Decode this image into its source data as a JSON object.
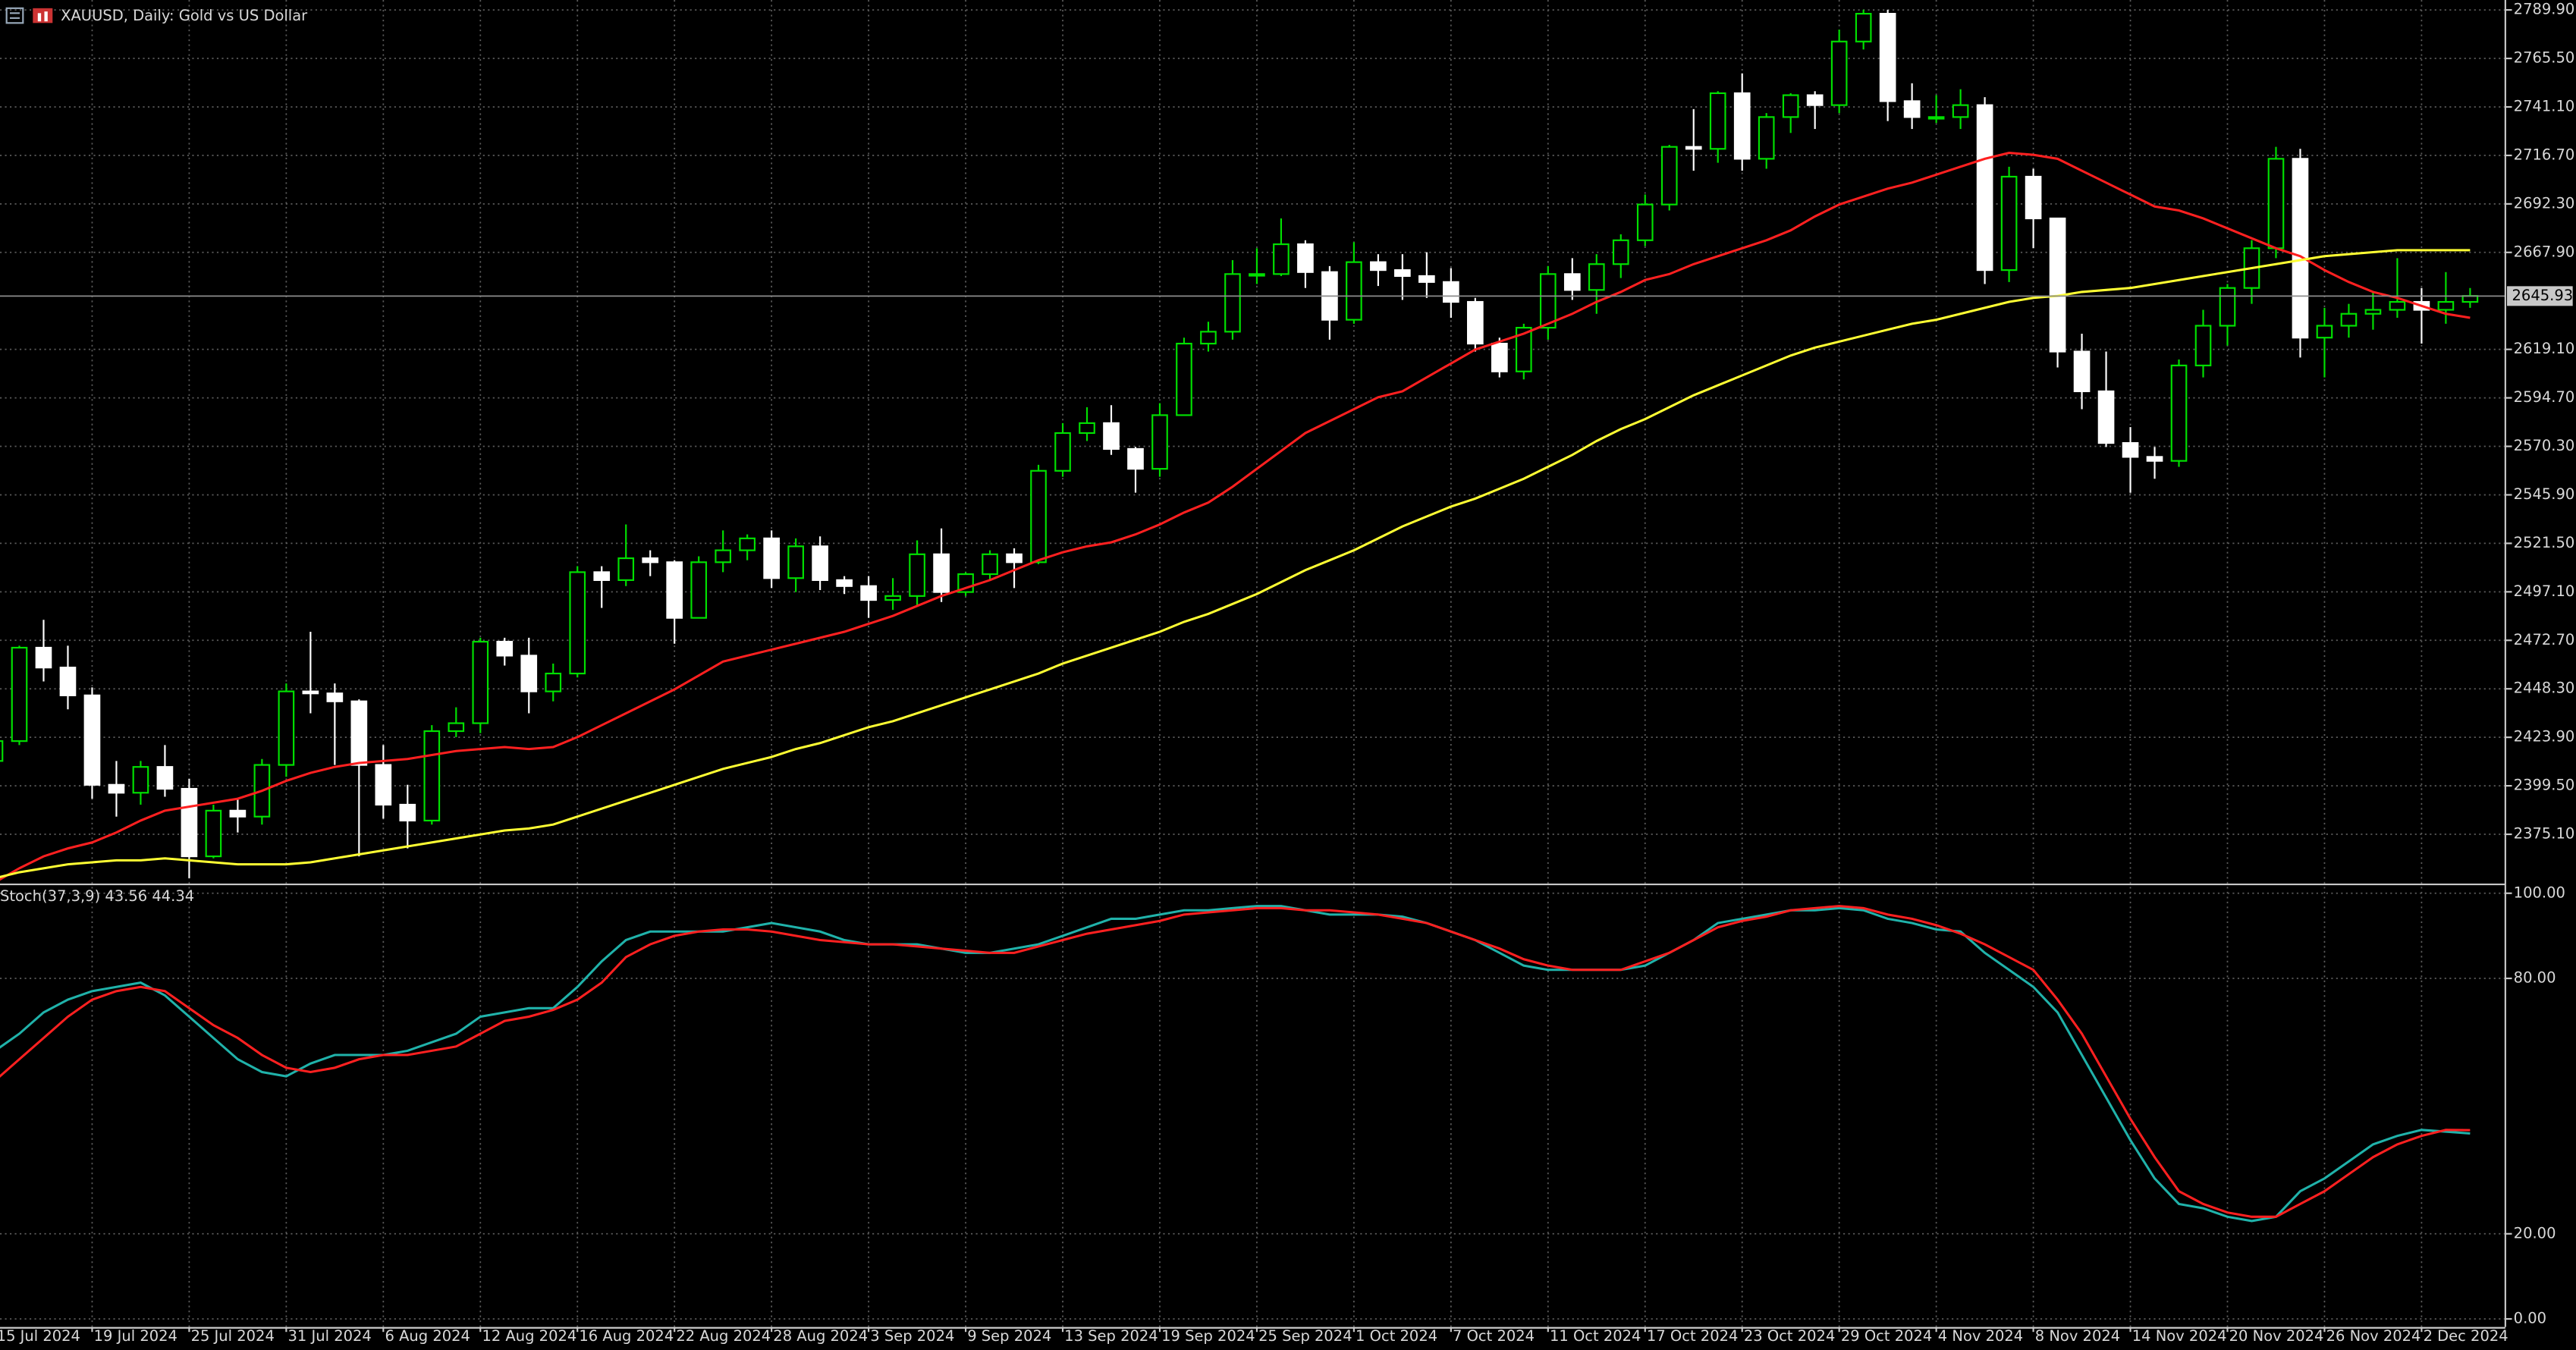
{
  "chart_data": [
    {
      "type": "candlestick",
      "title": "XAUUSD, Daily:  Gold vs US Dollar",
      "categories": [
        "15 Jul 2024",
        null,
        null,
        null,
        "19 Jul 2024",
        null,
        null,
        null,
        "25 Jul 2024",
        null,
        null,
        null,
        "31 Jul 2024",
        null,
        null,
        null,
        "6 Aug 2024",
        null,
        null,
        null,
        "12 Aug 2024",
        null,
        null,
        null,
        "16 Aug 2024",
        null,
        null,
        null,
        "22 Aug 2024",
        null,
        null,
        null,
        "28 Aug 2024",
        null,
        null,
        null,
        "3 Sep 2024",
        null,
        null,
        null,
        "9 Sep 2024",
        null,
        null,
        null,
        "13 Sep 2024",
        null,
        null,
        null,
        "19 Sep 2024",
        null,
        null,
        null,
        "25 Sep 2024",
        null,
        null,
        null,
        "1 Oct 2024",
        null,
        null,
        null,
        "7 Oct 2024",
        null,
        null,
        null,
        "11 Oct 2024",
        null,
        null,
        null,
        "17 Oct 2024",
        null,
        null,
        null,
        "23 Oct 2024",
        null,
        null,
        null,
        "29 Oct 2024",
        null,
        null,
        null,
        "4 Nov 2024",
        null,
        null,
        null,
        "8 Nov 2024",
        null,
        null,
        null,
        "14 Nov 2024",
        null,
        null,
        null,
        "20 Nov 2024",
        null,
        null,
        null,
        "26 Nov 2024",
        null,
        null,
        null,
        "2 Dec 2024",
        null,
        null
      ],
      "open": [
        2412,
        2422,
        2469,
        2459,
        2445,
        2400,
        2396,
        2409,
        2398,
        2364,
        2387,
        2384,
        2410,
        2447,
        2446,
        2442,
        2410,
        2390,
        2382,
        2427,
        2431,
        2472,
        2465,
        2447,
        2456,
        2507,
        2503,
        2514,
        2512,
        2484,
        2512,
        2518,
        2524,
        2504,
        2520,
        2503,
        2500,
        2493,
        2495,
        2516,
        2497,
        2506,
        2516,
        2512,
        2558,
        2577,
        2582,
        2569,
        2559,
        2586,
        2622,
        2628,
        2657,
        2657,
        2672,
        2658,
        2634,
        2663,
        2659,
        2656,
        2653,
        2643,
        2622,
        2608,
        2630,
        2657,
        2649,
        2662,
        2674,
        2692,
        2721,
        2720,
        2748,
        2715,
        2736,
        2747,
        2742,
        2774,
        2788,
        2744,
        2736,
        2736,
        2742,
        2659,
        2706,
        2685,
        2618,
        2598,
        2572,
        2565,
        2563,
        2611,
        2631,
        2650,
        2670,
        2715,
        2625,
        2631,
        2637,
        2639,
        2643,
        2639,
        2643
      ],
      "high": [
        2426,
        2470,
        2483,
        2470,
        2449,
        2412,
        2412,
        2420,
        2403,
        2390,
        2393,
        2413,
        2451,
        2477,
        2451,
        2443,
        2420,
        2400,
        2430,
        2439,
        2474,
        2474,
        2474,
        2461,
        2510,
        2510,
        2531,
        2518,
        2513,
        2515,
        2528,
        2526,
        2528,
        2524,
        2525,
        2505,
        2505,
        2504,
        2523,
        2529,
        2507,
        2518,
        2519,
        2561,
        2582,
        2590,
        2591,
        2570,
        2592,
        2625,
        2633,
        2664,
        2670,
        2685,
        2674,
        2661,
        2673,
        2667,
        2667,
        2668,
        2660,
        2645,
        2625,
        2632,
        2661,
        2665,
        2667,
        2677,
        2697,
        2722,
        2740,
        2749,
        2758,
        2738,
        2748,
        2749,
        2780,
        2790,
        2790,
        2753,
        2747,
        2750,
        2746,
        2711,
        2710,
        2685,
        2627,
        2618,
        2580,
        2570,
        2614,
        2639,
        2652,
        2674,
        2721,
        2720,
        2640,
        2642,
        2648,
        2665,
        2650,
        2658,
        2650
      ],
      "low": [
        2410,
        2420,
        2452,
        2438,
        2393,
        2384,
        2390,
        2394,
        2353,
        2363,
        2376,
        2380,
        2404,
        2436,
        2410,
        2364,
        2383,
        2368,
        2380,
        2424,
        2426,
        2460,
        2436,
        2442,
        2454,
        2489,
        2500,
        2505,
        2471,
        2484,
        2507,
        2513,
        2499,
        2497,
        2498,
        2496,
        2484,
        2488,
        2490,
        2492,
        2495,
        2503,
        2499,
        2511,
        2555,
        2573,
        2566,
        2547,
        2555,
        2586,
        2618,
        2624,
        2652,
        2656,
        2650,
        2624,
        2632,
        2651,
        2644,
        2645,
        2635,
        2618,
        2605,
        2604,
        2624,
        2644,
        2637,
        2655,
        2671,
        2689,
        2709,
        2713,
        2709,
        2710,
        2728,
        2730,
        2738,
        2770,
        2734,
        2730,
        2733,
        2730,
        2652,
        2653,
        2670,
        2610,
        2589,
        2570,
        2547,
        2554,
        2560,
        2605,
        2621,
        2642,
        2665,
        2615,
        2605,
        2625,
        2629,
        2635,
        2622,
        2632,
        2640
      ],
      "close": [
        2422,
        2469,
        2459,
        2445,
        2400,
        2396,
        2409,
        2398,
        2364,
        2387,
        2384,
        2410,
        2447,
        2446,
        2442,
        2410,
        2390,
        2382,
        2427,
        2431,
        2472,
        2465,
        2447,
        2456,
        2507,
        2503,
        2514,
        2512,
        2484,
        2512,
        2518,
        2524,
        2504,
        2520,
        2503,
        2500,
        2493,
        2495,
        2516,
        2497,
        2506,
        2516,
        2512,
        2558,
        2577,
        2582,
        2569,
        2559,
        2586,
        2622,
        2628,
        2657,
        2657,
        2672,
        2658,
        2634,
        2663,
        2659,
        2656,
        2653,
        2643,
        2622,
        2608,
        2630,
        2657,
        2649,
        2662,
        2674,
        2692,
        2721,
        2720,
        2748,
        2715,
        2736,
        2747,
        2742,
        2774,
        2788,
        2744,
        2736,
        2736,
        2742,
        2659,
        2706,
        2685,
        2618,
        2598,
        2572,
        2565,
        2563,
        2611,
        2631,
        2650,
        2670,
        2715,
        2625,
        2631,
        2637,
        2639,
        2643,
        2639,
        2643,
        2646
      ],
      "up_color": "#00e000",
      "down_color": "#ffffff",
      "series": [
        {
          "color": "#ff2020",
          "values": [
            2351,
            2358,
            2364,
            2368,
            2371,
            2376,
            2382,
            2387,
            2389,
            2391,
            2393,
            2397,
            2402,
            2406,
            2409,
            2411,
            2412,
            2413,
            2415,
            2417,
            2418,
            2419,
            2418,
            2419,
            2424,
            2430,
            2436,
            2442,
            2448,
            2455,
            2462,
            2465,
            2468,
            2471,
            2474,
            2477,
            2481,
            2485,
            2490,
            2495,
            2499,
            2503,
            2508,
            2513,
            2517,
            2520,
            2522,
            2526,
            2531,
            2537,
            2542,
            2550,
            2559,
            2568,
            2577,
            2583,
            2589,
            2595,
            2598,
            2605,
            2612,
            2619,
            2623,
            2627,
            2632,
            2637,
            2643,
            2648,
            2654,
            2657,
            2662,
            2666,
            2670,
            2674,
            2679,
            2686,
            2692,
            2696,
            2700,
            2703,
            2707,
            2711,
            2715,
            2718,
            2717,
            2715,
            2709,
            2703,
            2697,
            2691,
            2689,
            2685,
            2680,
            2675,
            2670,
            2666,
            2659,
            2653,
            2648,
            2645,
            2641,
            2637,
            2635
          ]
        },
        {
          "color": "#ffff33",
          "values": [
            2353,
            2356,
            2358,
            2360,
            2361,
            2362,
            2362,
            2363,
            2362,
            2361,
            2360,
            2360,
            2360,
            2361,
            2363,
            2365,
            2367,
            2369,
            2371,
            2373,
            2375,
            2377,
            2378,
            2380,
            2384,
            2388,
            2392,
            2396,
            2400,
            2404,
            2408,
            2411,
            2414,
            2418,
            2421,
            2425,
            2429,
            2432,
            2436,
            2440,
            2444,
            2448,
            2452,
            2456,
            2461,
            2465,
            2469,
            2473,
            2477,
            2482,
            2486,
            2491,
            2496,
            2502,
            2508,
            2513,
            2518,
            2524,
            2530,
            2535,
            2540,
            2544,
            2549,
            2554,
            2560,
            2566,
            2573,
            2579,
            2584,
            2590,
            2596,
            2601,
            2606,
            2611,
            2616,
            2620,
            2623,
            2626,
            2629,
            2632,
            2634,
            2637,
            2640,
            2643,
            2645,
            2646,
            2648,
            2649,
            2650,
            2652,
            2654,
            2656,
            2658,
            2660,
            2662,
            2664,
            2666,
            2667,
            2668,
            2669,
            2669,
            2669,
            2669
          ]
        }
      ],
      "current_price": 2645.93,
      "ylim": [
        2350.3,
        2794.9
      ],
      "yticks": [
        {
          "value": 2789.9,
          "label": "2789.90"
        },
        {
          "value": 2765.5,
          "label": "2765.50"
        },
        {
          "value": 2741.1,
          "label": "2741.10"
        },
        {
          "value": 2716.7,
          "label": "2716.70"
        },
        {
          "value": 2692.3,
          "label": "2692.30"
        },
        {
          "value": 2667.9,
          "label": "2667.90"
        },
        {
          "value": 2619.1,
          "label": "2619.10"
        },
        {
          "value": 2594.7,
          "label": "2594.70"
        },
        {
          "value": 2570.3,
          "label": "2570.30"
        },
        {
          "value": 2545.9,
          "label": "2545.90"
        },
        {
          "value": 2521.5,
          "label": "2521.50"
        },
        {
          "value": 2497.1,
          "label": "2497.10"
        },
        {
          "value": 2472.7,
          "label": "2472.70"
        },
        {
          "value": 2448.3,
          "label": "2448.30"
        },
        {
          "value": 2423.9,
          "label": "2423.90"
        },
        {
          "value": 2399.5,
          "label": "2399.50"
        },
        {
          "value": 2375.1,
          "label": "2375.10"
        }
      ],
      "grid": true
    },
    {
      "type": "line",
      "label": "Stoch(37,3,9) 43.56 44.34",
      "series": [
        {
          "color": "#20b2aa",
          "values": [
            63,
            67,
            72,
            75,
            77,
            78,
            79,
            76,
            71,
            66,
            61,
            58,
            57,
            60,
            62,
            62,
            62,
            63,
            65,
            67,
            71,
            72,
            73,
            73,
            78,
            84,
            89,
            91,
            91,
            91,
            91,
            92,
            93,
            92,
            91,
            89,
            88,
            88,
            88,
            87,
            86,
            86,
            87,
            88,
            90,
            92,
            94,
            94,
            95,
            96,
            96,
            96.5,
            97,
            97,
            96,
            95,
            95,
            95,
            94.5,
            93,
            91,
            89,
            86,
            83,
            82,
            82,
            82,
            82,
            83,
            86,
            89,
            93,
            94,
            95,
            96,
            96,
            96.5,
            96,
            94,
            93,
            91.5,
            91,
            86,
            82,
            78,
            72,
            62,
            52,
            42,
            33,
            27,
            26,
            24,
            23,
            24,
            30,
            33,
            37,
            41,
            43,
            44.4,
            44,
            43.56
          ]
        },
        {
          "color": "#ff2020",
          "values": [
            56,
            61,
            66,
            71,
            75,
            77,
            78,
            77,
            73,
            69,
            66,
            62,
            59,
            58,
            59,
            61,
            62,
            62,
            63,
            64,
            67,
            70,
            71,
            72.6,
            75,
            79,
            85,
            88,
            90,
            91,
            91.5,
            91.5,
            91,
            90,
            89,
            88.5,
            88,
            88,
            87.5,
            87,
            86.5,
            86,
            86,
            87.5,
            89,
            90.5,
            91.5,
            92.5,
            93.5,
            95,
            95.5,
            96,
            96.5,
            96.5,
            96,
            96,
            95.5,
            95,
            94,
            93,
            91,
            89,
            87,
            84.5,
            83,
            82,
            82,
            82,
            84,
            86,
            89,
            92,
            93.5,
            94.5,
            96,
            96.5,
            97,
            96.5,
            95,
            94,
            92.5,
            90.5,
            88,
            85,
            82,
            75,
            67,
            57,
            47,
            38,
            30,
            27,
            25,
            24,
            24,
            27,
            30,
            34,
            38,
            41,
            43,
            44.4,
            44.34
          ]
        }
      ],
      "ylim": [
        -1.9,
        101.5
      ],
      "yticks": [
        {
          "value": 100,
          "label": "100.00"
        },
        {
          "value": 80,
          "label": "80.00"
        },
        {
          "value": 20,
          "label": "20.00"
        },
        {
          "value": 0,
          "label": "0.00"
        }
      ],
      "grid": true
    }
  ]
}
